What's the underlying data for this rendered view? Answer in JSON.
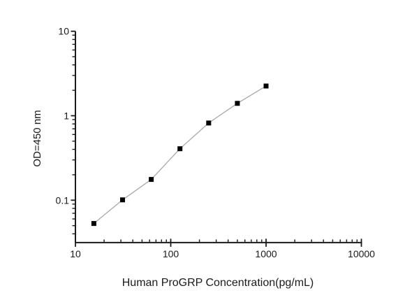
{
  "figure": {
    "background": "#ffffff"
  },
  "chart_data": {
    "type": "line",
    "title": "",
    "xlabel": "Human ProGRP Concentration(pg/mL)",
    "ylabel": "OD=450 nm",
    "x_scale": "log",
    "y_scale": "log",
    "xlim": [
      10,
      10000
    ],
    "ylim": [
      0.0315,
      10
    ],
    "x_ticks": {
      "values": [
        10,
        100,
        1000,
        10000
      ],
      "labels": [
        "10",
        "100",
        "1000",
        "10000"
      ]
    },
    "y_ticks": {
      "values": [
        10,
        1,
        0.1
      ],
      "labels": [
        "10",
        "1",
        "0.1"
      ]
    },
    "grid": false,
    "legend": null,
    "colors": {
      "axis": "#1a1a1a",
      "tick_text": "#1a1a1a",
      "series_line": "#a8a8a8",
      "marker": "#000000",
      "background": "#ffffff"
    },
    "series": [
      {
        "name": "standard-curve",
        "marker": "square",
        "x": [
          15.6,
          31.2,
          62.5,
          125,
          250,
          500,
          1000
        ],
        "y": [
          0.053,
          0.101,
          0.176,
          0.407,
          0.82,
          1.4,
          2.25
        ]
      }
    ]
  }
}
